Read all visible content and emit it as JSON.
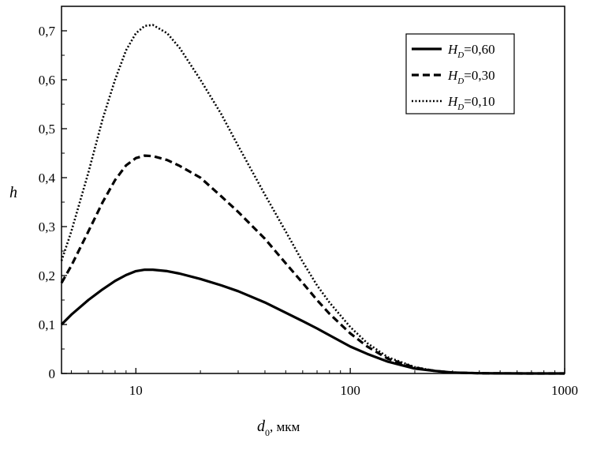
{
  "chart_data": {
    "type": "line",
    "xscale": "log",
    "xlim": [
      4.5,
      1000
    ],
    "ylim": [
      0,
      0.75
    ],
    "xticks": [
      10,
      100,
      1000
    ],
    "xtick_labels": [
      "10",
      "100",
      "1000"
    ],
    "yticks": [
      0,
      0.1,
      0.2,
      0.3,
      0.4,
      0.5,
      0.6,
      0.7
    ],
    "ytick_labels": [
      "0",
      "0,1",
      "0,2",
      "0,3",
      "0,4",
      "0,5",
      "0,6",
      "0,7"
    ],
    "ylabel": "h",
    "xlabel_symbol": "d",
    "xlabel_sub": "0",
    "xlabel_unit": ", мкм",
    "legend_position": "top-right",
    "legend_symbol": "H",
    "legend_sub": "D",
    "series": [
      {
        "name": "=0,60",
        "style": "solid",
        "x": [
          4.5,
          5,
          6,
          7,
          8,
          9,
          10,
          11,
          12,
          14,
          16,
          20,
          25,
          30,
          40,
          50,
          60,
          70,
          80,
          100,
          120,
          150,
          200,
          250,
          300,
          400,
          500,
          700,
          1000
        ],
        "y": [
          0.1,
          0.12,
          0.15,
          0.172,
          0.189,
          0.201,
          0.209,
          0.212,
          0.212,
          0.209,
          0.204,
          0.193,
          0.18,
          0.168,
          0.145,
          0.124,
          0.107,
          0.092,
          0.078,
          0.055,
          0.04,
          0.024,
          0.01,
          0.005,
          0.002,
          0.0005,
          0.0002,
          0,
          0
        ]
      },
      {
        "name": "=0,30",
        "style": "dashed",
        "x": [
          4.5,
          5,
          6,
          7,
          8,
          9,
          10,
          11,
          12,
          14,
          16,
          20,
          25,
          30,
          40,
          50,
          60,
          70,
          80,
          100,
          120,
          150,
          200,
          250,
          300,
          400,
          500,
          700,
          1000
        ],
        "y": [
          0.185,
          0.22,
          0.29,
          0.35,
          0.395,
          0.425,
          0.44,
          0.445,
          0.444,
          0.436,
          0.424,
          0.4,
          0.362,
          0.33,
          0.275,
          0.225,
          0.185,
          0.15,
          0.122,
          0.082,
          0.055,
          0.03,
          0.012,
          0.005,
          0.002,
          0.0005,
          0.0002,
          0,
          0
        ]
      },
      {
        "name": "=0,10",
        "style": "dotted",
        "x": [
          4.5,
          5,
          6,
          7,
          8,
          9,
          10,
          11,
          12,
          14,
          16,
          20,
          25,
          30,
          40,
          50,
          60,
          70,
          80,
          100,
          120,
          150,
          200,
          250,
          300,
          400,
          500,
          700,
          1000
        ],
        "y": [
          0.23,
          0.29,
          0.41,
          0.52,
          0.6,
          0.66,
          0.695,
          0.71,
          0.712,
          0.695,
          0.665,
          0.6,
          0.53,
          0.465,
          0.365,
          0.29,
          0.228,
          0.18,
          0.145,
          0.095,
          0.062,
          0.033,
          0.013,
          0.005,
          0.002,
          0.0005,
          0.0002,
          0,
          0
        ]
      }
    ]
  }
}
